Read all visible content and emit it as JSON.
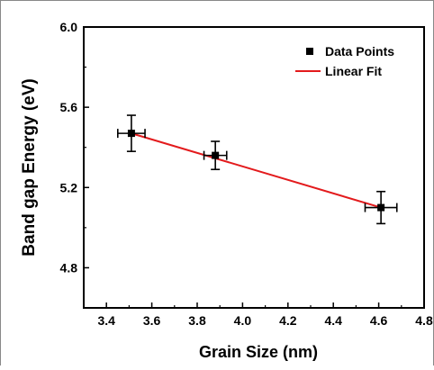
{
  "chart_data": {
    "type": "scatter",
    "title": "",
    "xlabel": "Grain Size (nm)",
    "ylabel": "Band gap Energy (eV)",
    "xlim": [
      3.3,
      4.8
    ],
    "ylim": [
      4.6,
      6.0
    ],
    "xticks": [
      3.4,
      3.6,
      3.8,
      4.0,
      4.2,
      4.4,
      4.6,
      4.8
    ],
    "xtick_labels": [
      "3.4",
      "3.6",
      "3.8",
      "4.0",
      "4.2",
      "4.4",
      "4.6",
      "4.8"
    ],
    "yticks": [
      4.8,
      5.2,
      5.6,
      6.0
    ],
    "ytick_labels": [
      "4.8",
      "5.2",
      "5.6",
      "6.0"
    ],
    "grid": false,
    "legend_position": "top-right",
    "series": [
      {
        "name": "Data Points",
        "kind": "scatter",
        "marker": "square",
        "color": "#000000",
        "x": [
          3.51,
          3.88,
          4.61
        ],
        "y": [
          5.47,
          5.36,
          5.1
        ],
        "x_err": [
          0.06,
          0.05,
          0.07
        ],
        "y_err": [
          0.09,
          0.07,
          0.08
        ]
      },
      {
        "name": "Linear Fit",
        "kind": "line",
        "color": "#e31a1c",
        "x": [
          3.51,
          4.61
        ],
        "y": [
          5.47,
          5.1
        ]
      }
    ]
  }
}
